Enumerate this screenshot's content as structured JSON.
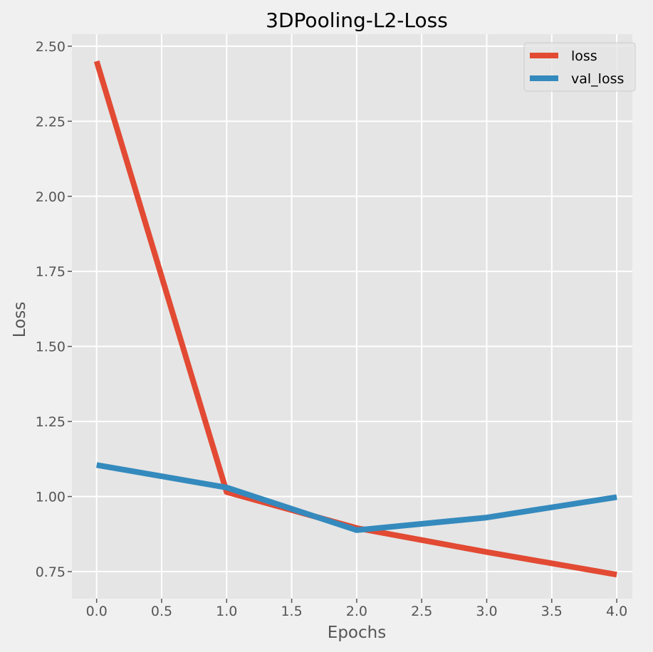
{
  "chart_data": {
    "type": "line",
    "title": "3DPooling-L2-Loss",
    "xlabel": "Epochs",
    "ylabel": "Loss",
    "x": [
      0,
      1,
      2,
      3,
      4
    ],
    "series": [
      {
        "name": "loss",
        "values": [
          2.45,
          1.015,
          0.895,
          0.815,
          0.74
        ],
        "color": "#e24a33"
      },
      {
        "name": "val_loss",
        "values": [
          1.105,
          1.03,
          0.888,
          0.93,
          0.998
        ],
        "color": "#348abd"
      }
    ],
    "xlim": [
      -0.19,
      4.12
    ],
    "ylim": [
      0.66,
      2.54
    ],
    "xticks": [
      0.0,
      0.5,
      1.0,
      1.5,
      2.0,
      2.5,
      3.0,
      3.5,
      4.0
    ],
    "xtick_labels": [
      "0.0",
      "0.5",
      "1.0",
      "1.5",
      "2.0",
      "2.5",
      "3.0",
      "3.5",
      "4.0"
    ],
    "yticks": [
      0.75,
      1.0,
      1.25,
      1.5,
      1.75,
      2.0,
      2.25,
      2.5
    ],
    "ytick_labels": [
      "0.75",
      "1.00",
      "1.25",
      "1.50",
      "1.75",
      "2.00",
      "2.25",
      "2.50"
    ],
    "grid": true,
    "legend_position": "top-right",
    "colors": {
      "figure_background": "#f0f0f0",
      "plot_background": "#e5e5e5",
      "grid": "#ffffff"
    }
  }
}
